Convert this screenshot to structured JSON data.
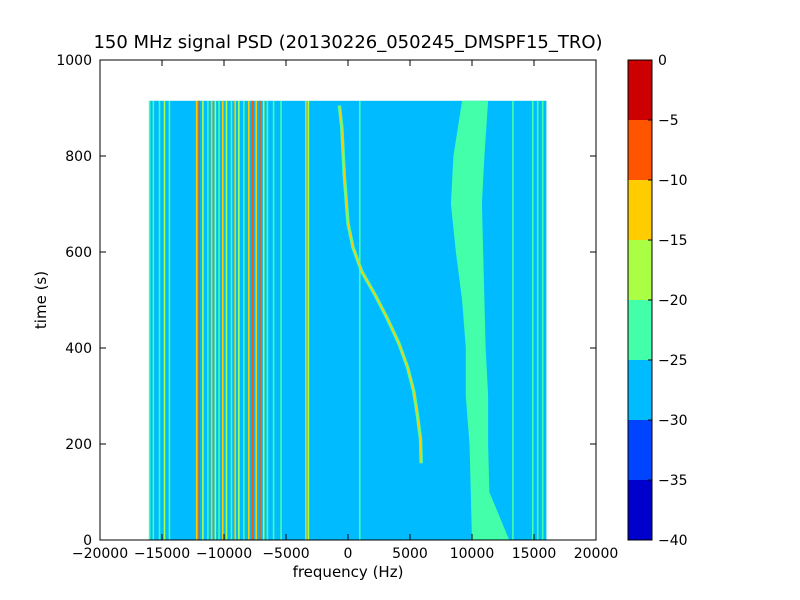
{
  "chart_data": {
    "type": "heatmap",
    "title": "150 MHz signal PSD (20130226_050245_DMSPF15_TRO)",
    "xlabel": "frequency (Hz)",
    "ylabel": "time (s)",
    "xlim": [
      -20000,
      20000
    ],
    "ylim": [
      0,
      1000
    ],
    "xticks": [
      -20000,
      -15000,
      -10000,
      -5000,
      0,
      5000,
      10000,
      15000,
      20000
    ],
    "xtick_labels": [
      "−20000",
      "−15000",
      "−10000",
      "−5000",
      "0",
      "5000",
      "10000",
      "15000",
      "20000"
    ],
    "yticks": [
      0,
      200,
      400,
      600,
      800,
      1000
    ],
    "ytick_labels": [
      "0",
      "200",
      "400",
      "600",
      "800",
      "1000"
    ],
    "data_extent": {
      "x": [
        -16000,
        16000
      ],
      "y": [
        0,
        915
      ]
    },
    "background_level": -27.5,
    "colorbar": {
      "range": [
        -40,
        0
      ],
      "ticks": [
        0,
        -5,
        -10,
        -15,
        -20,
        -25,
        -30,
        -35,
        -40
      ],
      "tick_labels": [
        "0",
        "−5",
        "−10",
        "−15",
        "−20",
        "−25",
        "−30",
        "−35",
        "−40"
      ],
      "levels": [
        {
          "range": [
            -40,
            -35
          ],
          "color": "#0000cc"
        },
        {
          "range": [
            -35,
            -30
          ],
          "color": "#0044ff"
        },
        {
          "range": [
            -30,
            -25
          ],
          "color": "#00bbff"
        },
        {
          "range": [
            -25,
            -20
          ],
          "color": "#44ffaa"
        },
        {
          "range": [
            -20,
            -15
          ],
          "color": "#aaff44"
        },
        {
          "range": [
            -15,
            -10
          ],
          "color": "#ffcc00"
        },
        {
          "range": [
            -10,
            -5
          ],
          "color": "#ff5500"
        },
        {
          "range": [
            -5,
            0
          ],
          "color": "#cc0000"
        }
      ]
    },
    "vertical_lines": [
      {
        "x": -16000,
        "level": -22.5
      },
      {
        "x": -15700,
        "level": -22.5
      },
      {
        "x": -15200,
        "level": -22.5
      },
      {
        "x": -14800,
        "level": -17.5
      },
      {
        "x": -14400,
        "level": -22.5
      },
      {
        "x": -12200,
        "level": -12.5
      },
      {
        "x": -12000,
        "level": -7.5
      },
      {
        "x": -11700,
        "level": -17.5
      },
      {
        "x": -11300,
        "level": -22.5
      },
      {
        "x": -11000,
        "level": -12.5
      },
      {
        "x": -10700,
        "level": -17.5
      },
      {
        "x": -10400,
        "level": -22.5
      },
      {
        "x": -10100,
        "level": -12.5
      },
      {
        "x": -9800,
        "level": -17.5
      },
      {
        "x": -9400,
        "level": -22.5
      },
      {
        "x": -9100,
        "level": -12.5
      },
      {
        "x": -8800,
        "level": -17.5
      },
      {
        "x": -8400,
        "level": -22.5
      },
      {
        "x": -8000,
        "level": -12.5
      },
      {
        "x": -7700,
        "level": -7.5
      },
      {
        "x": -7400,
        "level": -12.5
      },
      {
        "x": -7100,
        "level": -7.5
      },
      {
        "x": -6800,
        "level": -17.5
      },
      {
        "x": -6500,
        "level": -22.5
      },
      {
        "x": -6000,
        "level": -22.5
      },
      {
        "x": -5400,
        "level": -22.5
      },
      {
        "x": -3400,
        "level": -12.5
      },
      {
        "x": -3200,
        "level": -17.5
      },
      {
        "x": 950,
        "level": -22.5
      },
      {
        "x": 13300,
        "level": -22.5
      },
      {
        "x": 14900,
        "level": -22.5
      },
      {
        "x": 15300,
        "level": -22.5
      },
      {
        "x": 15700,
        "level": -22.5
      }
    ],
    "drifting_trace": {
      "level": -12.5,
      "points": [
        {
          "x": 5900,
          "y": 160
        },
        {
          "x": 5850,
          "y": 210
        },
        {
          "x": 5600,
          "y": 260
        },
        {
          "x": 5300,
          "y": 310
        },
        {
          "x": 4800,
          "y": 360
        },
        {
          "x": 4100,
          "y": 410
        },
        {
          "x": 3200,
          "y": 460
        },
        {
          "x": 2200,
          "y": 510
        },
        {
          "x": 1100,
          "y": 560
        },
        {
          "x": 400,
          "y": 610
        },
        {
          "x": 0,
          "y": 660
        },
        {
          "x": -300,
          "y": 760
        },
        {
          "x": -500,
          "y": 860
        },
        {
          "x": -700,
          "y": 905
        }
      ]
    },
    "noise_band": {
      "level": -22.5,
      "rows": [
        {
          "y": 0,
          "x_from": 10000,
          "x_to": 13000
        },
        {
          "y": 100,
          "x_from": 9900,
          "x_to": 11400
        },
        {
          "y": 200,
          "x_from": 9800,
          "x_to": 11300
        },
        {
          "y": 300,
          "x_from": 9500,
          "x_to": 11300
        },
        {
          "y": 400,
          "x_from": 9500,
          "x_to": 11100
        },
        {
          "y": 500,
          "x_from": 9200,
          "x_to": 11000
        },
        {
          "y": 600,
          "x_from": 8700,
          "x_to": 10900
        },
        {
          "y": 700,
          "x_from": 8300,
          "x_to": 10800
        },
        {
          "y": 800,
          "x_from": 8500,
          "x_to": 11000
        },
        {
          "y": 915,
          "x_from": 9200,
          "x_to": 11300
        }
      ]
    }
  }
}
